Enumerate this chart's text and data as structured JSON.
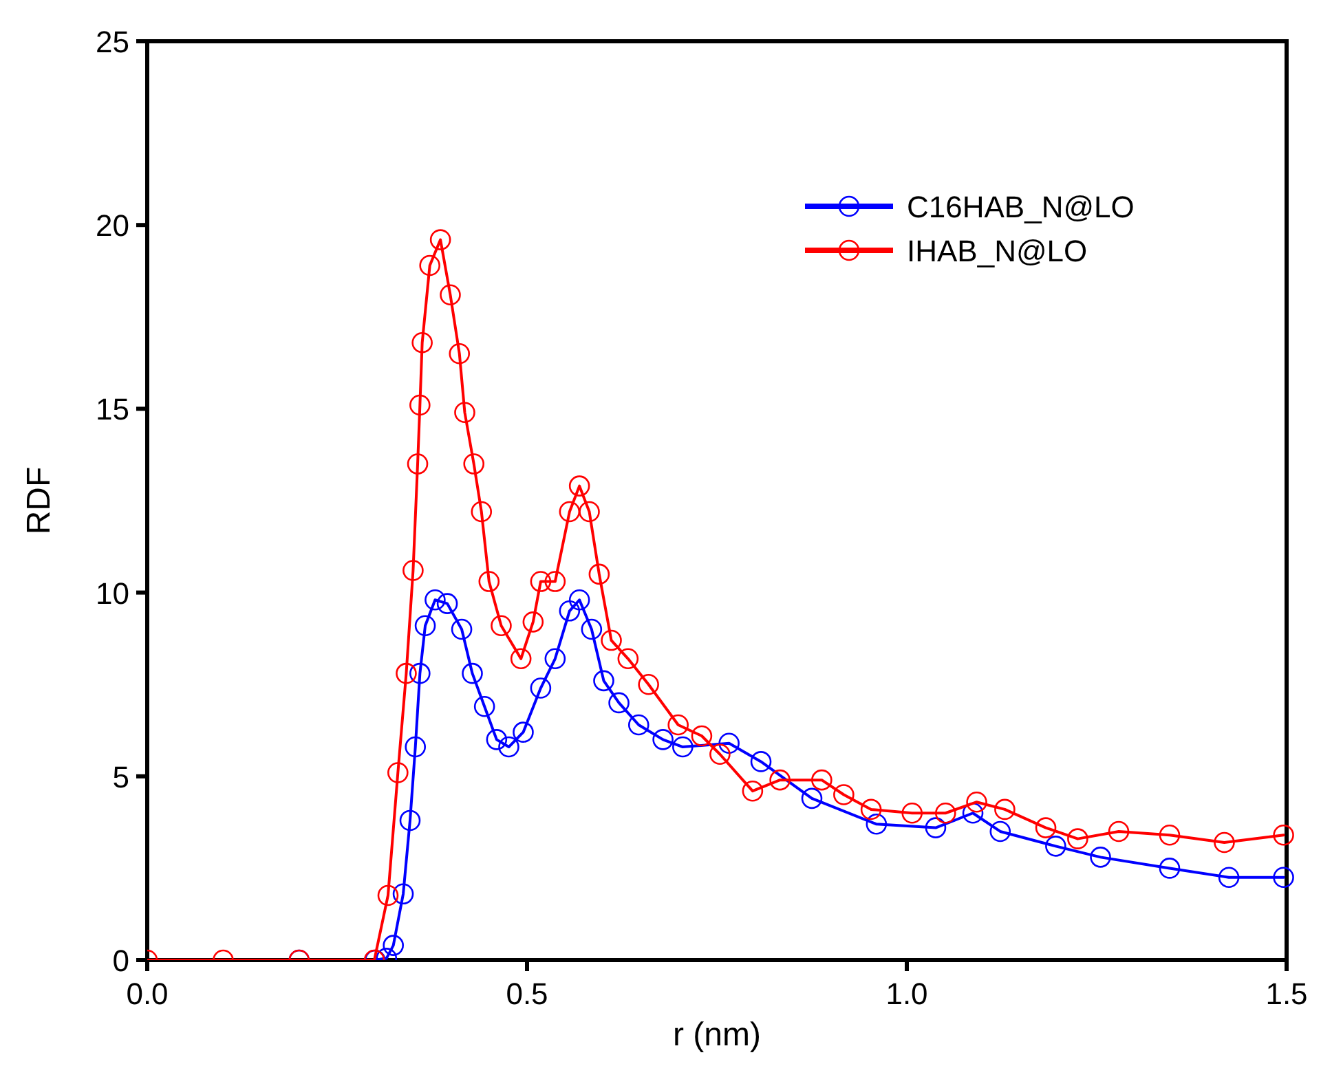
{
  "chart_data": {
    "type": "line",
    "xlabel": "r (nm)",
    "ylabel": "RDF",
    "xlim": [
      0,
      1.5
    ],
    "ylim": [
      0,
      25
    ],
    "xticks": [
      {
        "value": 0,
        "label": "0.0"
      },
      {
        "value": 0.5,
        "label": "0.5"
      },
      {
        "value": 1,
        "label": "1.0"
      },
      {
        "value": 1.5,
        "label": "1.5"
      }
    ],
    "yticks": [
      0,
      5,
      10,
      15,
      20,
      25
    ],
    "grid": false,
    "legend": "top right",
    "marker": "circle",
    "line_style": "solid",
    "series": [
      {
        "name": "C16HAB_N@LO",
        "color": "#0000ff",
        "x": [
          0.2,
          0.3,
          0.315,
          0.324,
          0.337,
          0.346,
          0.353,
          0.359,
          0.366,
          0.379,
          0.395,
          0.414,
          0.428,
          0.444,
          0.46,
          0.476,
          0.495,
          0.518,
          0.537,
          0.556,
          0.569,
          0.585,
          0.601,
          0.621,
          0.647,
          0.679,
          0.705,
          0.766,
          0.808,
          0.875,
          0.96,
          1.038,
          1.087,
          1.123,
          1.196,
          1.255,
          1.346,
          1.424,
          1.496
        ],
        "values": [
          0,
          0,
          0.05,
          0.4,
          1.8,
          3.8,
          5.8,
          7.8,
          9.1,
          9.8,
          9.7,
          9,
          7.8,
          6.9,
          6,
          5.8,
          6.2,
          7.4,
          8.2,
          9.5,
          9.8,
          9,
          7.6,
          7,
          6.4,
          6,
          5.8,
          5.9,
          5.4,
          4.4,
          3.7,
          3.6,
          4,
          3.5,
          3.1,
          2.8,
          2.5,
          2.25,
          2.25
        ]
      },
      {
        "name": "IHAB_N@LO",
        "color": "#ff0000",
        "x": [
          0,
          0.1,
          0.2,
          0.299,
          0.317,
          0.33,
          0.341,
          0.35,
          0.356,
          0.359,
          0.362,
          0.372,
          0.386,
          0.399,
          0.411,
          0.418,
          0.43,
          0.44,
          0.45,
          0.466,
          0.492,
          0.508,
          0.518,
          0.537,
          0.556,
          0.569,
          0.582,
          0.595,
          0.611,
          0.633,
          0.66,
          0.699,
          0.73,
          0.754,
          0.797,
          0.833,
          0.888,
          0.917,
          0.953,
          1.007,
          1.051,
          1.092,
          1.129,
          1.183,
          1.225,
          1.279,
          1.346,
          1.418,
          1.496
        ],
        "values": [
          0,
          0,
          0,
          0,
          1.76,
          5.1,
          7.8,
          10.6,
          13.5,
          15.1,
          16.8,
          18.9,
          19.6,
          18.1,
          16.5,
          14.9,
          13.5,
          12.2,
          10.3,
          9.1,
          8.2,
          9.2,
          10.3,
          10.3,
          12.2,
          12.9,
          12.2,
          10.5,
          8.7,
          8.2,
          7.5,
          6.4,
          6.1,
          5.6,
          4.6,
          4.9,
          4.9,
          4.5,
          4.1,
          4,
          4,
          4.3,
          4.1,
          3.6,
          3.3,
          3.5,
          3.4,
          3.2,
          3.4
        ]
      }
    ]
  }
}
